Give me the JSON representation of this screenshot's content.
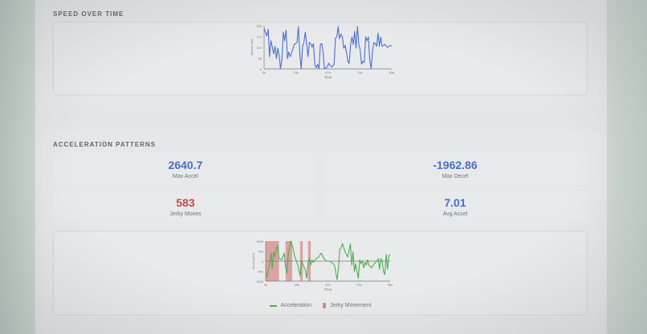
{
  "speed_section": {
    "title": "SPEED OVER TIME"
  },
  "accel_section": {
    "title": "ACCELERATION PATTERNS",
    "stats": [
      {
        "value": "2640.7",
        "label": "Max Accel",
        "color": "#4a6fc4"
      },
      {
        "value": "-1962.86",
        "label": "Max Decel",
        "color": "#4a6fc4"
      },
      {
        "value": "583",
        "label": "Jerky Moves",
        "color": "#c44a45"
      },
      {
        "value": "7.01",
        "label": "Avg Accel",
        "color": "#4a6fc4"
      }
    ],
    "legend": {
      "acceleration": "Acceleration",
      "jerky": "Jerky Movement"
    }
  },
  "colors": {
    "speed_line": "#4a6fd0",
    "accel_line": "#4caf50",
    "jerky_band": "#d58a8a"
  },
  "chart_data": [
    {
      "type": "line",
      "title": "Speed Over Time",
      "xlabel": "Time",
      "ylabel": "Speed (u/s)",
      "x_ticks": [
        "0s",
        "23s",
        "47s",
        "70s",
        "93s"
      ],
      "y_ticks": [
        "0",
        "58",
        "115",
        "173",
        "230"
      ],
      "ylim": [
        0,
        230
      ],
      "xlim": [
        0,
        93
      ],
      "series": [
        {
          "name": "Speed",
          "x": [
            0,
            1,
            2,
            3,
            4,
            5,
            6,
            7,
            8,
            9,
            10,
            11,
            12,
            13,
            14,
            15,
            16,
            17,
            18,
            19,
            20,
            22,
            24,
            25,
            26,
            27,
            28,
            29,
            30,
            31,
            32,
            33,
            34,
            35,
            36,
            37,
            38,
            39,
            40,
            41,
            42,
            43,
            44,
            45,
            46,
            47,
            48,
            49,
            50,
            51,
            52,
            53,
            54,
            55,
            56,
            57,
            58,
            59,
            60,
            61,
            62,
            63,
            64,
            65,
            66,
            67,
            68,
            69,
            70,
            71,
            72,
            73,
            74,
            75,
            76,
            77,
            78,
            79,
            80,
            81,
            82,
            83,
            84,
            85,
            86,
            87,
            88,
            89,
            90,
            91,
            92,
            93
          ],
          "values": [
            215,
            195,
            175,
            210,
            65,
            150,
            115,
            80,
            120,
            55,
            110,
            70,
            0,
            50,
            195,
            150,
            205,
            55,
            90,
            65,
            85,
            130,
            140,
            225,
            80,
            0,
            120,
            140,
            195,
            135,
            65,
            140,
            135,
            115,
            135,
            20,
            5,
            25,
            0,
            130,
            135,
            90,
            0,
            5,
            10,
            30,
            20,
            10,
            15,
            25,
            165,
            170,
            225,
            160,
            185,
            170,
            110,
            125,
            90,
            40,
            30,
            125,
            170,
            130,
            200,
            110,
            225,
            130,
            100,
            25,
            40,
            35,
            170,
            150,
            170,
            50,
            0,
            95,
            140,
            135,
            120,
            190,
            120,
            170,
            120,
            125,
            130,
            120,
            115,
            120,
            125,
            120
          ]
        }
      ]
    },
    {
      "type": "line",
      "title": "Acceleration Patterns",
      "xlabel": "Time",
      "ylabel": "Accel (u/s²)",
      "x_ticks": [
        "0s",
        "23s",
        "47s",
        "70s",
        "94s"
      ],
      "y_ticks": [
        "1500",
        "750",
        "0",
        "-750",
        "-1500"
      ],
      "ylim": [
        -1500,
        1500
      ],
      "xlim": [
        0,
        94
      ],
      "series": [
        {
          "name": "Acceleration",
          "x": [
            0,
            1,
            2,
            3,
            4,
            5,
            6,
            7,
            8,
            9,
            10,
            12,
            14,
            15,
            16,
            17,
            18,
            19,
            20,
            21,
            22,
            24,
            26,
            27,
            28,
            30,
            31,
            32,
            33,
            34,
            35,
            36,
            38,
            40,
            42,
            44,
            46,
            48,
            50,
            52,
            54,
            55,
            56,
            57,
            58,
            60,
            62,
            64,
            65,
            66,
            67,
            68,
            70,
            71,
            72,
            73,
            74,
            75,
            76,
            77,
            78,
            80,
            82,
            84,
            85,
            86,
            87,
            88,
            89,
            90,
            91,
            92,
            93,
            94
          ],
          "values": [
            -900,
            -1200,
            -600,
            -200,
            600,
            -500,
            700,
            300,
            900,
            1150,
            200,
            100,
            600,
            -400,
            -900,
            400,
            1000,
            1500,
            1200,
            800,
            300,
            -200,
            -1100,
            0,
            -200,
            -700,
            -1300,
            -100,
            200,
            -300,
            100,
            -100,
            200,
            300,
            600,
            200,
            0,
            0,
            -100,
            -300,
            -1400,
            -500,
            900,
            1000,
            1300,
            700,
            300,
            1300,
            -300,
            700,
            -800,
            -200,
            -1300,
            100,
            -200,
            0,
            -500,
            -100,
            -300,
            100,
            -300,
            -500,
            -200,
            0,
            200,
            -600,
            200,
            0,
            -800,
            -1000,
            500,
            -600,
            400,
            450
          ]
        },
        {
          "name": "Jerky Movement",
          "bands": [
            [
              0,
              10
            ],
            [
              15,
              20
            ],
            [
              26,
              28
            ],
            [
              32,
              34
            ]
          ]
        }
      ]
    }
  ]
}
